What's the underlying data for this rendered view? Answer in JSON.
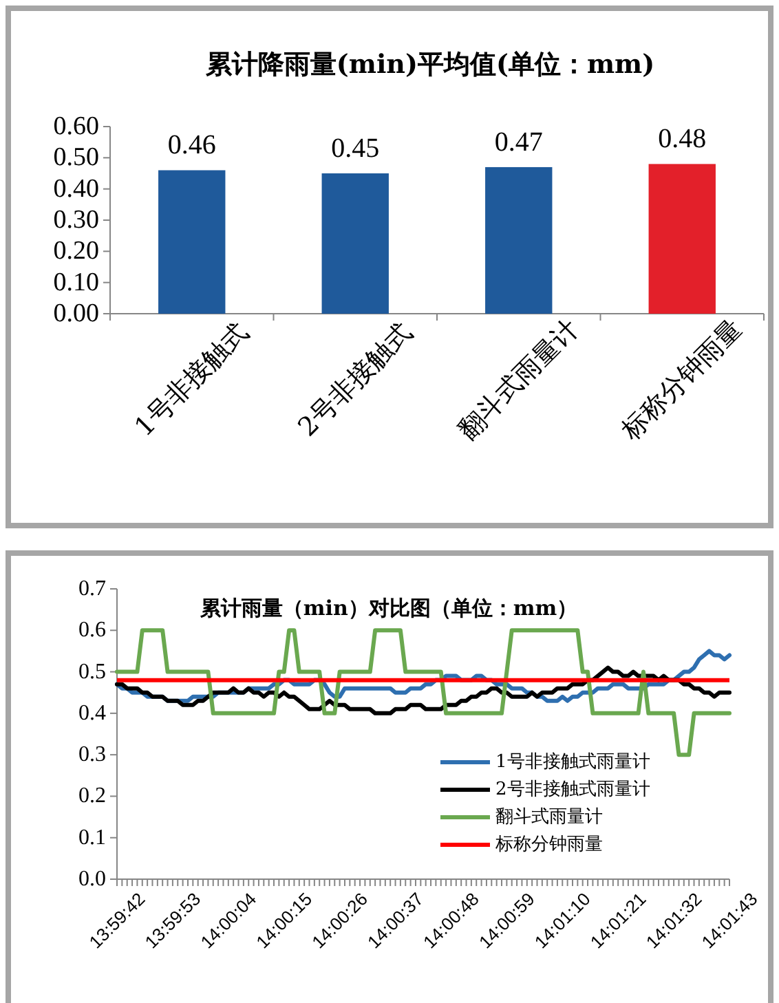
{
  "chart_data": [
    {
      "type": "bar",
      "title": "累计降雨量(min)平均值(单位：mm)",
      "categories": [
        "1号非接触式",
        "2号非接触式",
        "翻斗式雨量计",
        "标称分钟雨量"
      ],
      "values": [
        0.46,
        0.45,
        0.47,
        0.48
      ],
      "colors": [
        "#1f5a9b",
        "#1f5a9b",
        "#1f5a9b",
        "#e3202a"
      ],
      "ylim": [
        0,
        0.6
      ],
      "yticks": [
        {
          "value": 0,
          "label": "0.00"
        },
        {
          "value": 0.1,
          "label": "0.10"
        },
        {
          "value": 0.2,
          "label": "0.20"
        },
        {
          "value": 0.3,
          "label": "0.30"
        },
        {
          "value": 0.4,
          "label": "0.40"
        },
        {
          "value": 0.5,
          "label": "0.50"
        },
        {
          "value": 0.6,
          "label": "0.60"
        }
      ],
      "data_labels": true
    },
    {
      "type": "line",
      "title": "累计雨量（min）对比图（单位：mm）",
      "categories": [
        "13:59:42",
        null,
        null,
        null,
        null,
        null,
        null,
        null,
        null,
        null,
        null,
        "13:59:53",
        null,
        null,
        null,
        null,
        null,
        null,
        null,
        null,
        null,
        null,
        "14:00:04",
        null,
        null,
        null,
        null,
        null,
        null,
        null,
        null,
        null,
        null,
        "14:00:15",
        null,
        null,
        null,
        null,
        null,
        null,
        null,
        null,
        null,
        null,
        "14:00:26",
        null,
        null,
        null,
        null,
        null,
        null,
        null,
        null,
        null,
        null,
        "14:00:37",
        null,
        null,
        null,
        null,
        null,
        null,
        null,
        null,
        null,
        null,
        "14:00:48",
        null,
        null,
        null,
        null,
        null,
        null,
        null,
        null,
        null,
        null,
        "14:00:59",
        null,
        null,
        null,
        null,
        null,
        null,
        null,
        null,
        null,
        null,
        "14:01:10",
        null,
        null,
        null,
        null,
        null,
        null,
        null,
        null,
        null,
        null,
        "14:01:21",
        null,
        null,
        null,
        null,
        null,
        null,
        null,
        null,
        null,
        null,
        "14:01:32",
        null,
        null,
        null,
        null,
        null,
        null,
        null,
        null,
        null,
        null,
        "14:01:43"
      ],
      "series": [
        {
          "name": "1号非接触式雨量计",
          "color": "#2e6fb0",
          "values": [
            0.47,
            0.46,
            0.46,
            0.45,
            0.45,
            0.45,
            0.44,
            0.44,
            0.44,
            0.44,
            0.43,
            0.43,
            0.43,
            0.43,
            0.43,
            0.44,
            0.44,
            0.44,
            0.44,
            0.44,
            0.45,
            0.45,
            0.45,
            0.45,
            0.45,
            0.45,
            0.46,
            0.46,
            0.46,
            0.46,
            0.46,
            0.47,
            0.47,
            0.48,
            0.48,
            0.47,
            0.47,
            0.47,
            0.47,
            0.48,
            0.48,
            0.47,
            0.45,
            0.44,
            0.44,
            0.46,
            0.46,
            0.46,
            0.46,
            0.46,
            0.46,
            0.46,
            0.46,
            0.46,
            0.46,
            0.45,
            0.45,
            0.45,
            0.46,
            0.46,
            0.46,
            0.47,
            0.47,
            0.48,
            0.48,
            0.49,
            0.49,
            0.49,
            0.48,
            0.48,
            0.48,
            0.49,
            0.49,
            0.48,
            0.48,
            0.47,
            0.47,
            0.47,
            0.46,
            0.46,
            0.46,
            0.45,
            0.45,
            0.44,
            0.44,
            0.43,
            0.43,
            0.43,
            0.44,
            0.43,
            0.44,
            0.44,
            0.45,
            0.45,
            0.45,
            0.46,
            0.46,
            0.46,
            0.47,
            0.47,
            0.47,
            0.46,
            0.46,
            0.46,
            0.46,
            0.47,
            0.47,
            0.47,
            0.47,
            0.48,
            0.48,
            0.49,
            0.5,
            0.5,
            0.51,
            0.53,
            0.54,
            0.55,
            0.54,
            0.54,
            0.53,
            0.54
          ]
        },
        {
          "name": "2号非接触式雨量计",
          "color": "#000000",
          "values": [
            0.47,
            0.47,
            0.46,
            0.46,
            0.46,
            0.45,
            0.45,
            0.44,
            0.44,
            0.44,
            0.43,
            0.43,
            0.43,
            0.42,
            0.42,
            0.42,
            0.43,
            0.43,
            0.44,
            0.45,
            0.45,
            0.45,
            0.45,
            0.46,
            0.45,
            0.45,
            0.46,
            0.45,
            0.45,
            0.44,
            0.45,
            0.45,
            0.44,
            0.45,
            0.44,
            0.44,
            0.43,
            0.42,
            0.41,
            0.41,
            0.41,
            0.42,
            0.43,
            0.42,
            0.42,
            0.42,
            0.41,
            0.41,
            0.41,
            0.41,
            0.41,
            0.4,
            0.4,
            0.4,
            0.4,
            0.41,
            0.41,
            0.41,
            0.42,
            0.42,
            0.42,
            0.41,
            0.41,
            0.41,
            0.41,
            0.42,
            0.42,
            0.42,
            0.43,
            0.43,
            0.44,
            0.44,
            0.45,
            0.45,
            0.46,
            0.46,
            0.45,
            0.45,
            0.44,
            0.44,
            0.44,
            0.44,
            0.45,
            0.44,
            0.45,
            0.45,
            0.45,
            0.46,
            0.46,
            0.46,
            0.47,
            0.47,
            0.47,
            0.48,
            0.48,
            0.49,
            0.5,
            0.51,
            0.5,
            0.5,
            0.49,
            0.49,
            0.5,
            0.49,
            0.49,
            0.49,
            0.49,
            0.48,
            0.49,
            0.48,
            0.48,
            0.48,
            0.47,
            0.47,
            0.46,
            0.46,
            0.45,
            0.45,
            0.44,
            0.45,
            0.45,
            0.45
          ]
        },
        {
          "name": "翻斗式雨量计",
          "color": "#6aa84f",
          "values": [
            0.5,
            0.5,
            0.5,
            0.5,
            0.5,
            0.6,
            0.6,
            0.6,
            0.6,
            0.6,
            0.5,
            0.5,
            0.5,
            0.5,
            0.5,
            0.5,
            0.5,
            0.5,
            0.5,
            0.4,
            0.4,
            0.4,
            0.4,
            0.4,
            0.4,
            0.4,
            0.4,
            0.4,
            0.4,
            0.4,
            0.4,
            0.4,
            0.5,
            0.5,
            0.6,
            0.6,
            0.5,
            0.5,
            0.5,
            0.5,
            0.5,
            0.4,
            0.4,
            0.4,
            0.5,
            0.5,
            0.5,
            0.5,
            0.5,
            0.5,
            0.5,
            0.6,
            0.6,
            0.6,
            0.6,
            0.6,
            0.6,
            0.5,
            0.5,
            0.5,
            0.5,
            0.5,
            0.5,
            0.5,
            0.5,
            0.4,
            0.4,
            0.4,
            0.4,
            0.4,
            0.4,
            0.4,
            0.4,
            0.4,
            0.4,
            0.4,
            0.4,
            0.5,
            0.6,
            0.6,
            0.6,
            0.6,
            0.6,
            0.6,
            0.6,
            0.6,
            0.6,
            0.6,
            0.6,
            0.6,
            0.6,
            0.6,
            0.5,
            0.5,
            0.4,
            0.4,
            0.4,
            0.4,
            0.4,
            0.4,
            0.4,
            0.4,
            0.4,
            0.4,
            0.5,
            0.4,
            0.4,
            0.4,
            0.4,
            0.4,
            0.4,
            0.3,
            0.3,
            0.3,
            0.4,
            0.4,
            0.4,
            0.4,
            0.4,
            0.4,
            0.4,
            0.4
          ]
        }
      ],
      "ref_lines": [
        {
          "axis": "y",
          "value": 0.48,
          "label": "标称分钟雨量",
          "color": "#ff0000"
        }
      ],
      "ylim": [
        0,
        0.7
      ],
      "yticks": [
        {
          "value": 0,
          "label": "0.0"
        },
        0.1,
        0.2,
        0.3,
        0.4,
        0.5,
        0.6,
        0.7
      ],
      "legend": "bottom right"
    }
  ]
}
